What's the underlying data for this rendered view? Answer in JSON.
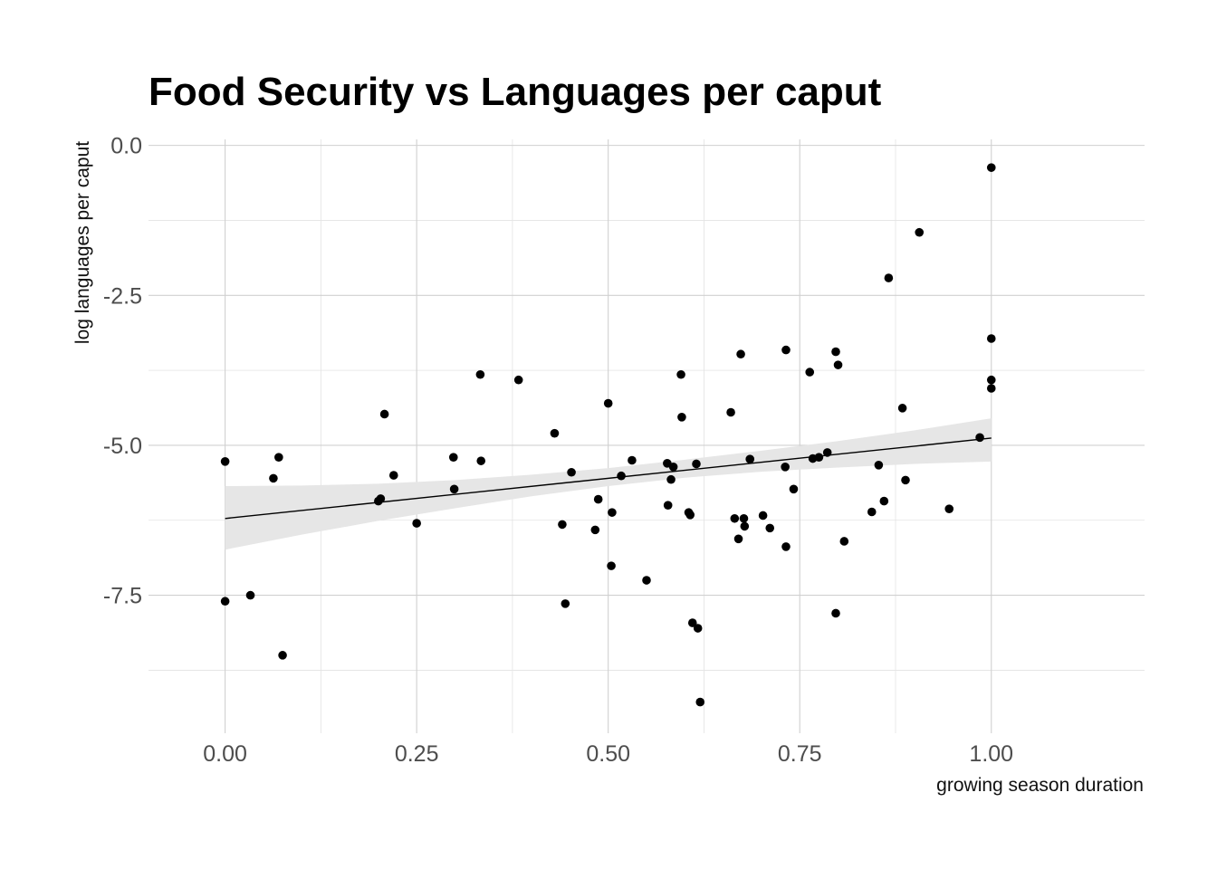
{
  "chart_data": {
    "type": "scatter",
    "title": "Food Security vs Languages per caput",
    "xlabel": "growing season duration",
    "ylabel": "log languages per caput",
    "xlim": [
      -0.1,
      1.2
    ],
    "ylim": [
      -9.8,
      0.1
    ],
    "x_ticks": [
      0,
      0.25,
      0.5,
      0.75,
      1.0
    ],
    "x_tick_labels": [
      "0.00",
      "0.25",
      "0.50",
      "0.75",
      "1.00"
    ],
    "y_ticks": [
      0,
      -2.5,
      -5,
      -7.5
    ],
    "y_tick_labels": [
      "0.0",
      "-2.5",
      "-5.0",
      "-7.5"
    ],
    "grid": true,
    "point_color": "#000000",
    "trend_color": "#000000",
    "band_color": "#e6e6e6",
    "trend": {
      "x": [
        0,
        1
      ],
      "y": [
        -6.22,
        -4.88
      ]
    },
    "confidence_band": {
      "x": [
        0,
        0.1,
        0.2,
        0.3,
        0.4,
        0.5,
        0.6,
        0.7,
        0.8,
        0.9,
        1.0
      ],
      "lower": [
        -6.74,
        -6.49,
        -6.26,
        -6.05,
        -5.85,
        -5.68,
        -5.54,
        -5.44,
        -5.37,
        -5.31,
        -5.27
      ],
      "upper": [
        -5.68,
        -5.67,
        -5.64,
        -5.58,
        -5.49,
        -5.38,
        -5.24,
        -5.09,
        -4.93,
        -4.75,
        -4.55
      ]
    },
    "points": [
      {
        "x": 0.0,
        "y": -5.27
      },
      {
        "x": 0.0,
        "y": -7.6
      },
      {
        "x": 0.033,
        "y": -7.5
      },
      {
        "x": 0.063,
        "y": -5.55
      },
      {
        "x": 0.07,
        "y": -5.2
      },
      {
        "x": 0.075,
        "y": -8.5
      },
      {
        "x": 0.2,
        "y": -5.93
      },
      {
        "x": 0.203,
        "y": -5.89
      },
      {
        "x": 0.208,
        "y": -4.48
      },
      {
        "x": 0.22,
        "y": -5.5
      },
      {
        "x": 0.25,
        "y": -6.3
      },
      {
        "x": 0.298,
        "y": -5.2
      },
      {
        "x": 0.299,
        "y": -5.73
      },
      {
        "x": 0.333,
        "y": -3.82
      },
      {
        "x": 0.334,
        "y": -5.26
      },
      {
        "x": 0.383,
        "y": -3.91
      },
      {
        "x": 0.43,
        "y": -4.8
      },
      {
        "x": 0.44,
        "y": -6.32
      },
      {
        "x": 0.444,
        "y": -7.64
      },
      {
        "x": 0.452,
        "y": -5.45
      },
      {
        "x": 0.483,
        "y": -6.41
      },
      {
        "x": 0.487,
        "y": -5.9
      },
      {
        "x": 0.5,
        "y": -4.3
      },
      {
        "x": 0.504,
        "y": -7.01
      },
      {
        "x": 0.505,
        "y": -6.12
      },
      {
        "x": 0.517,
        "y": -5.51
      },
      {
        "x": 0.531,
        "y": -5.25
      },
      {
        "x": 0.55,
        "y": -7.25
      },
      {
        "x": 0.577,
        "y": -5.3
      },
      {
        "x": 0.578,
        "y": -6.0
      },
      {
        "x": 0.582,
        "y": -5.57
      },
      {
        "x": 0.585,
        "y": -5.36
      },
      {
        "x": 0.595,
        "y": -3.82
      },
      {
        "x": 0.596,
        "y": -4.53
      },
      {
        "x": 0.605,
        "y": -6.12
      },
      {
        "x": 0.607,
        "y": -6.16
      },
      {
        "x": 0.61,
        "y": -7.96
      },
      {
        "x": 0.615,
        "y": -5.31
      },
      {
        "x": 0.617,
        "y": -8.05
      },
      {
        "x": 0.62,
        "y": -9.28
      },
      {
        "x": 0.66,
        "y": -4.45
      },
      {
        "x": 0.665,
        "y": -6.22
      },
      {
        "x": 0.67,
        "y": -6.56
      },
      {
        "x": 0.673,
        "y": -3.48
      },
      {
        "x": 0.677,
        "y": -6.22
      },
      {
        "x": 0.678,
        "y": -6.35
      },
      {
        "x": 0.685,
        "y": -5.23
      },
      {
        "x": 0.702,
        "y": -6.17
      },
      {
        "x": 0.711,
        "y": -6.38
      },
      {
        "x": 0.731,
        "y": -5.36
      },
      {
        "x": 0.732,
        "y": -3.41
      },
      {
        "x": 0.732,
        "y": -6.69
      },
      {
        "x": 0.742,
        "y": -5.73
      },
      {
        "x": 0.763,
        "y": -3.78
      },
      {
        "x": 0.767,
        "y": -5.22
      },
      {
        "x": 0.775,
        "y": -5.2
      },
      {
        "x": 0.786,
        "y": -5.12
      },
      {
        "x": 0.797,
        "y": -3.44
      },
      {
        "x": 0.797,
        "y": -7.8
      },
      {
        "x": 0.8,
        "y": -3.66
      },
      {
        "x": 0.808,
        "y": -6.6
      },
      {
        "x": 0.844,
        "y": -6.11
      },
      {
        "x": 0.853,
        "y": -5.33
      },
      {
        "x": 0.86,
        "y": -5.93
      },
      {
        "x": 0.866,
        "y": -2.21
      },
      {
        "x": 0.884,
        "y": -4.38
      },
      {
        "x": 0.888,
        "y": -5.58
      },
      {
        "x": 0.906,
        "y": -1.45
      },
      {
        "x": 0.945,
        "y": -6.06
      },
      {
        "x": 0.985,
        "y": -4.87
      },
      {
        "x": 1.0,
        "y": -0.37
      },
      {
        "x": 1.0,
        "y": -3.22
      },
      {
        "x": 1.0,
        "y": -3.91
      },
      {
        "x": 1.0,
        "y": -4.05
      }
    ]
  }
}
